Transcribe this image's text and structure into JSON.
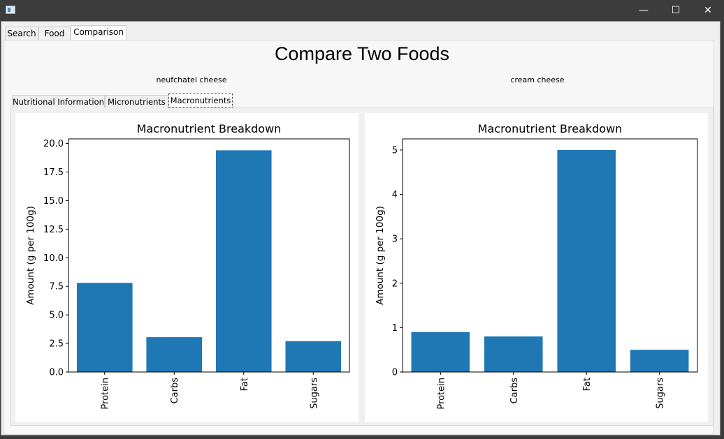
{
  "window": {
    "minimize_glyph": "—",
    "maximize_glyph": "☐",
    "close_glyph": "✕"
  },
  "main_tabs": [
    {
      "label": "Search"
    },
    {
      "label": "Food"
    },
    {
      "label": "Comparison"
    }
  ],
  "page_title": "Compare Two Foods",
  "foods": {
    "left": "neufchatel cheese",
    "right": "cream cheese"
  },
  "sub_tabs": [
    {
      "label": "Nutritional Information"
    },
    {
      "label": "Micronutrients"
    },
    {
      "label": "Macronutrients"
    }
  ],
  "colors": {
    "bar": "#1f77b4"
  },
  "chart_data": [
    {
      "type": "bar",
      "title": "Macronutrient Breakdown",
      "xlabel": "",
      "ylabel": "Amount (g per 100g)",
      "categories": [
        "Protein",
        "Carbs",
        "Fat",
        "Sugars"
      ],
      "values": [
        7.8,
        3.05,
        19.4,
        2.7
      ],
      "ylim": [
        0,
        20.4
      ],
      "yticks": [
        "0.0",
        "2.5",
        "5.0",
        "7.5",
        "10.0",
        "12.5",
        "15.0",
        "17.5",
        "20.0"
      ],
      "ytick_values": [
        0,
        2.5,
        5,
        7.5,
        10,
        12.5,
        15,
        17.5,
        20
      ],
      "grid": false,
      "legend": "none"
    },
    {
      "type": "bar",
      "title": "Macronutrient Breakdown",
      "xlabel": "",
      "ylabel": "Amount (g per 100g)",
      "categories": [
        "Protein",
        "Carbs",
        "Fat",
        "Sugars"
      ],
      "values": [
        0.9,
        0.8,
        5.0,
        0.5
      ],
      "ylim": [
        0,
        5.25
      ],
      "yticks": [
        "0",
        "1",
        "2",
        "3",
        "4",
        "5"
      ],
      "ytick_values": [
        0,
        1,
        2,
        3,
        4,
        5
      ],
      "grid": false,
      "legend": "none"
    }
  ]
}
